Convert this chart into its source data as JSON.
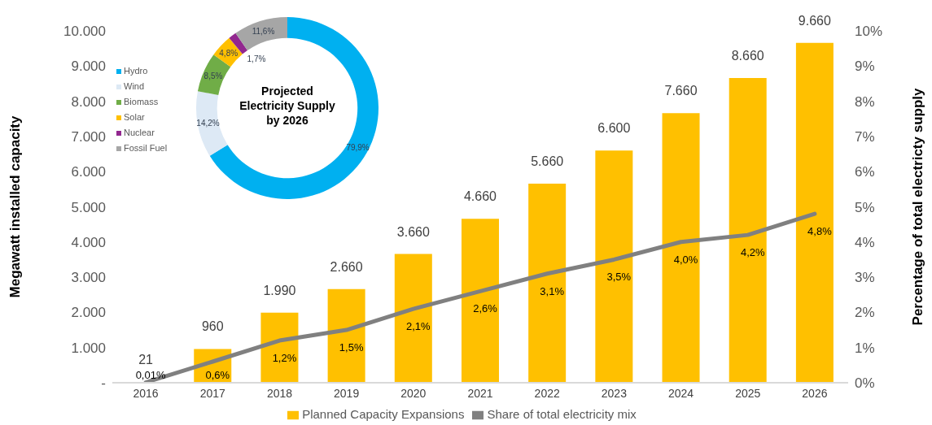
{
  "chart_data": [
    {
      "type": "bar",
      "categories": [
        "2016",
        "2017",
        "2018",
        "2019",
        "2020",
        "2021",
        "2022",
        "2023",
        "2024",
        "2025",
        "2026"
      ],
      "series": [
        {
          "name": "Planned Capacity Expansions",
          "type": "bar",
          "color": "#ffc000",
          "values": [
            21,
            960,
            1990,
            2660,
            3660,
            4660,
            5660,
            6600,
            7660,
            8660,
            9660
          ],
          "value_labels": [
            "21",
            "960",
            "1.990",
            "2.660",
            "3.660",
            "4.660",
            "5.660",
            "6.600",
            "7.660",
            "8.660",
            "9.660"
          ]
        },
        {
          "name": "Share of total electricity mix",
          "type": "line",
          "axis": "y2",
          "color": "#808080",
          "values": [
            0.01,
            0.6,
            1.2,
            1.5,
            2.1,
            2.6,
            3.1,
            3.5,
            4.0,
            4.2,
            4.8
          ],
          "value_labels": [
            "0,01%",
            "0,6%",
            "1,2%",
            "1,5%",
            "2,1%",
            "2,6%",
            "3,1%",
            "3,5%",
            "4,0%",
            "4,2%",
            "4,8%"
          ]
        }
      ],
      "ylabel": "Megawatt installed capacity",
      "y2label": "Percentage of total electricty supply",
      "ylim": [
        0,
        10000
      ],
      "yticks": [
        {
          "value": 0,
          "label": "-"
        },
        {
          "value": 1000,
          "label": "1.000"
        },
        {
          "value": 2000,
          "label": "2.000"
        },
        {
          "value": 3000,
          "label": "3.000"
        },
        {
          "value": 4000,
          "label": "4.000"
        },
        {
          "value": 5000,
          "label": "5.000"
        },
        {
          "value": 6000,
          "label": "6.000"
        },
        {
          "value": 7000,
          "label": "7.000"
        },
        {
          "value": 8000,
          "label": "8.000"
        },
        {
          "value": 9000,
          "label": "9.000"
        },
        {
          "value": 10000,
          "label": "10.000"
        }
      ],
      "y2lim": [
        0,
        10
      ],
      "y2ticks": [
        {
          "value": 0,
          "label": "0%"
        },
        {
          "value": 1,
          "label": "1%"
        },
        {
          "value": 2,
          "label": "2%"
        },
        {
          "value": 3,
          "label": "3%"
        },
        {
          "value": 4,
          "label": "4%"
        },
        {
          "value": 5,
          "label": "5%"
        },
        {
          "value": 6,
          "label": "6%"
        },
        {
          "value": 7,
          "label": "7%"
        },
        {
          "value": 8,
          "label": "8%"
        },
        {
          "value": 9,
          "label": "9%"
        },
        {
          "value": 10,
          "label": "10%"
        }
      ],
      "legend": "bottom",
      "marker": "none",
      "line_style": "solid"
    },
    {
      "type": "donut",
      "title": "Projected Electricity Supply by 2026",
      "categories": [
        "Hydro",
        "Wind",
        "Biomass",
        "Solar",
        "Nuclear",
        "Fossil Fuel"
      ],
      "values": [
        79.9,
        14.2,
        8.5,
        4.8,
        1.7,
        11.6
      ],
      "colors": [
        "#00b0f0",
        "#dde9f5",
        "#70ad47",
        "#ffc000",
        "#92278f",
        "#a6a6a6"
      ],
      "value_labels": [
        "79,9%",
        "14,2%",
        "8,5%",
        "4,8%",
        "1,7%",
        "11,6%"
      ],
      "legend": "left"
    }
  ]
}
